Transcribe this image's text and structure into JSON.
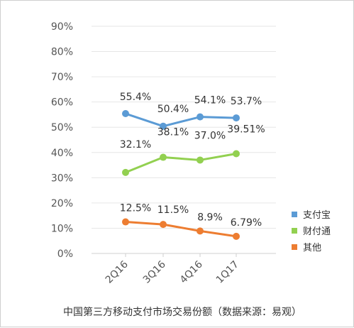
{
  "chart_data": {
    "type": "line",
    "title": "中国第三方移动支付市场交易份额（数据来源：易观）",
    "categories": [
      "2Q16",
      "3Q16",
      "4Q16",
      "1Q17"
    ],
    "y_tick_labels": [
      "0%",
      "10%",
      "20%",
      "30%",
      "40%",
      "50%",
      "60%",
      "70%",
      "80%",
      "90%"
    ],
    "ylim": [
      0,
      90
    ],
    "grid": true,
    "legend_position": "right",
    "series": [
      {
        "name": "支付宝",
        "color": "#5b9bd5",
        "values": [
          55.4,
          50.4,
          54.1,
          53.7
        ],
        "labels": [
          "55.4%",
          "50.4%",
          "54.1%",
          "53.7%"
        ]
      },
      {
        "name": "财付通",
        "color": "#92d050",
        "values": [
          32.1,
          38.1,
          37.0,
          39.51
        ],
        "labels": [
          "32.1%",
          "38.1%",
          "37.0%",
          "39.51%"
        ]
      },
      {
        "name": "其他",
        "color": "#ed7d31",
        "values": [
          12.5,
          11.5,
          8.9,
          6.79
        ],
        "labels": [
          "12.5%",
          "11.5%",
          "8.9%",
          "6.79%"
        ]
      }
    ]
  }
}
